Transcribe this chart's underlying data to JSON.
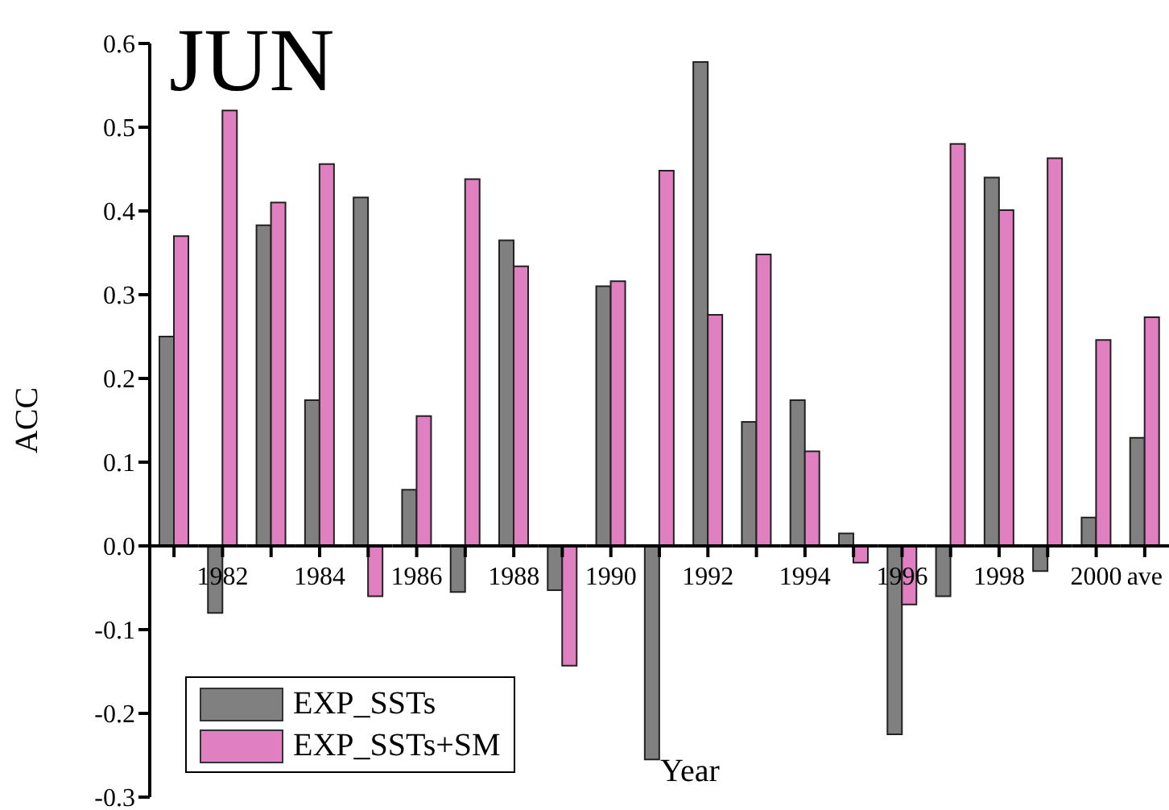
{
  "chart_data": {
    "type": "bar",
    "title": "JUN",
    "xlabel": "Year",
    "ylabel": "ACC",
    "categories": [
      null,
      "1982",
      null,
      "1984",
      null,
      "1986",
      null,
      "1988",
      null,
      "1990",
      null,
      "1992",
      null,
      "1994",
      null,
      "1996",
      null,
      "1998",
      null,
      "2000",
      "ave"
    ],
    "series": [
      {
        "name": "EXP_SSTs",
        "color": "#808080",
        "values": [
          0.25,
          -0.08,
          0.383,
          0.174,
          0.416,
          0.067,
          -0.055,
          0.365,
          -0.053,
          0.31,
          -0.255,
          0.578,
          0.148,
          0.174,
          0.015,
          -0.225,
          -0.06,
          0.44,
          -0.03,
          0.034,
          0.129
        ]
      },
      {
        "name": "EXP_SSTs+SM",
        "color": "#e080c0",
        "values": [
          0.37,
          0.52,
          0.41,
          0.456,
          -0.06,
          0.155,
          0.438,
          0.334,
          -0.143,
          0.316,
          0.448,
          0.276,
          0.348,
          0.113,
          -0.02,
          -0.07,
          0.48,
          0.401,
          0.463,
          0.246,
          0.273
        ]
      }
    ],
    "ylim": [
      -0.3,
      0.6
    ],
    "yticks": [
      -0.3,
      -0.2,
      -0.1,
      {
        "value": 0,
        "label": "0.0"
      },
      0.1,
      0.2,
      0.3,
      0.4,
      0.5,
      0.6
    ],
    "grid": false,
    "legend": "bottom left"
  }
}
